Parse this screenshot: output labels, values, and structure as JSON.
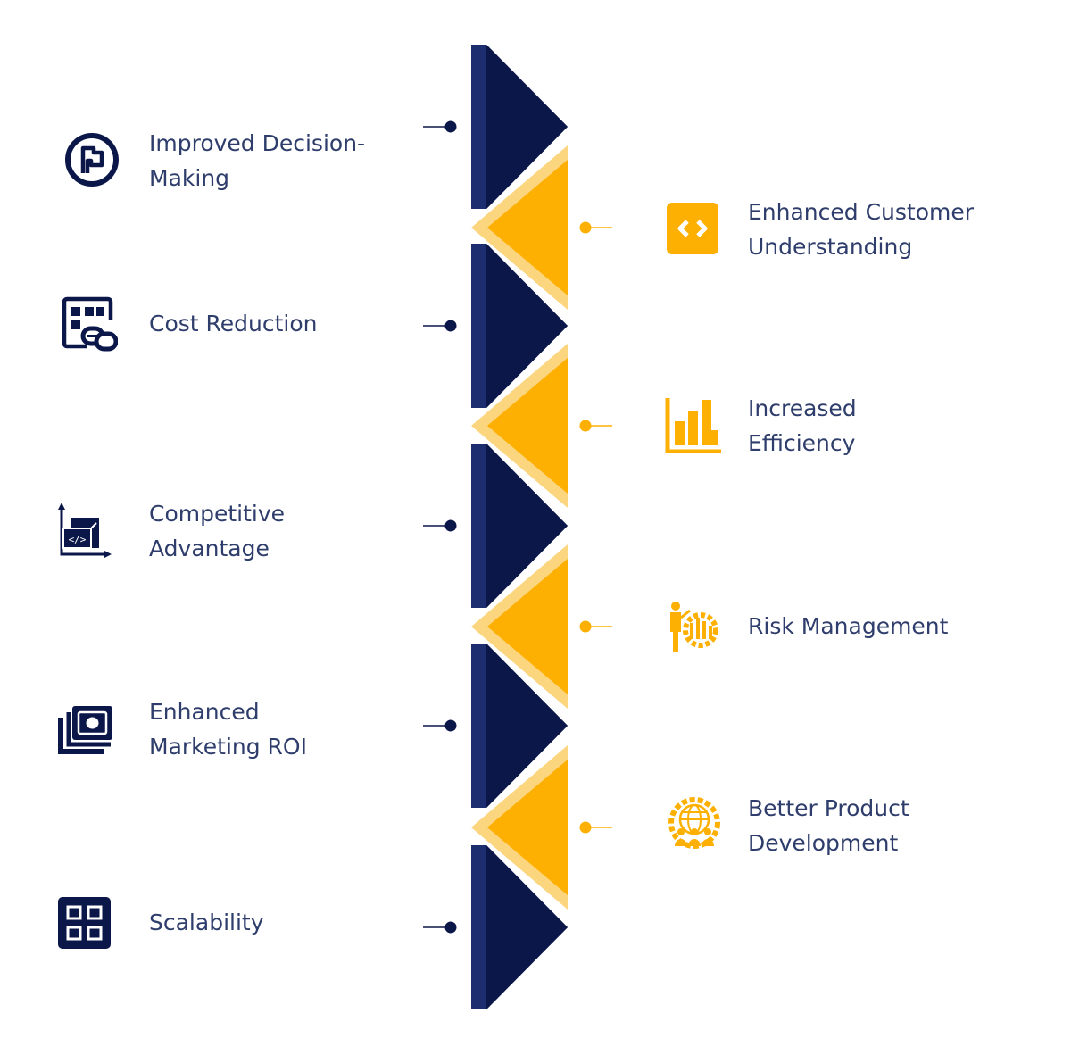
{
  "colors": {
    "navy": "#0b1749",
    "navy_light": "#1c2d70",
    "gold": "#fdb001",
    "gold_light": "#fcd57f",
    "text": "#2e3d6b"
  },
  "left_items": [
    {
      "lines": [
        "Improved Decision-",
        "Making"
      ],
      "icon": "flag-circle-icon"
    },
    {
      "lines": [
        "Cost Reduction"
      ],
      "icon": "dashboard-link-icon"
    },
    {
      "lines": [
        "Competitive",
        "Advantage"
      ],
      "icon": "code-chart-icon"
    },
    {
      "lines": [
        "Enhanced",
        "Marketing ROI"
      ],
      "icon": "money-stack-icon"
    },
    {
      "lines": [
        "Scalability"
      ],
      "icon": "grid-icon"
    }
  ],
  "right_items": [
    {
      "lines": [
        "Enhanced Customer",
        "Understanding"
      ],
      "icon": "code-brackets-icon"
    },
    {
      "lines": [
        "Increased",
        "Efficiency"
      ],
      "icon": "bar-chart-icon"
    },
    {
      "lines": [
        "Risk Management"
      ],
      "icon": "presenter-gear-icon"
    },
    {
      "lines": [
        "Better Product",
        "Development"
      ],
      "icon": "team-globe-gear-icon"
    }
  ]
}
